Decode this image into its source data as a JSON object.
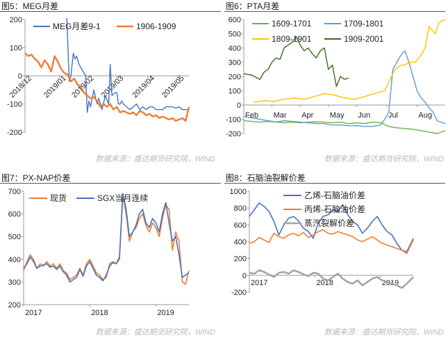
{
  "figures": [
    {
      "id": "p1",
      "title": "图5：MEG月差",
      "source": "数据来源：盛达期货研究院，WIND"
    },
    {
      "id": "p2",
      "title": "图6：PTA月差",
      "source": "数据来源：盛达期货研究院，WIND"
    },
    {
      "id": "p3",
      "title": "图7：PX-NAP价差",
      "source": "数据来源：盛达期货研究院，WIND"
    },
    {
      "id": "p4",
      "title": "图8：石脑油裂解价差",
      "source": "数据来源：盛达期货研究院，WIND"
    }
  ],
  "chart_data": [
    {
      "type": "line",
      "ylim": [
        -200,
        200
      ],
      "yticks": [
        -200,
        -100,
        0,
        100,
        200
      ],
      "xticklabels": [
        "2018/12",
        "2019/01",
        "2019/02",
        "2019/03",
        "2019/04",
        "2019/05"
      ],
      "rotated_x_labels": true,
      "legend": "top",
      "series": [
        {
          "name": "MEG月差9-1",
          "color": "#4472c4",
          "width": 1.4,
          "x": [
            0.255,
            0.27,
            0.28,
            0.285,
            0.295,
            0.305,
            0.315,
            0.33,
            0.35,
            0.36,
            0.37,
            0.38,
            0.39,
            0.4,
            0.42,
            0.44,
            0.45,
            0.47,
            0.49,
            0.51,
            0.52,
            0.53,
            0.55,
            0.56,
            0.57,
            0.58,
            0.59,
            0.6,
            0.62,
            0.64,
            0.66,
            0.68,
            0.7,
            0.72,
            0.74,
            0.76,
            0.78,
            0.8,
            0.82,
            0.84,
            0.86,
            0.88,
            0.9,
            0.92,
            0.94,
            0.96,
            0.98,
            1.0
          ],
          "y": [
            205,
            -20,
            0,
            30,
            80,
            60,
            70,
            40,
            20,
            10,
            0,
            -130,
            -90,
            -110,
            -50,
            -100,
            -80,
            -120,
            -70,
            -100,
            40,
            -70,
            -60,
            -60,
            -100,
            -100,
            -90,
            -100,
            -110,
            -120,
            -110,
            -100,
            -120,
            -110,
            -120,
            -110,
            -110,
            -120,
            -120,
            -120,
            -110,
            -110,
            -110,
            -115,
            -110,
            -120,
            -120,
            -120
          ]
        },
        {
          "name": "1906-1909",
          "color": "#ed7d31",
          "width": 2.4,
          "x": [
            0.0,
            0.02,
            0.04,
            0.06,
            0.08,
            0.1,
            0.12,
            0.14,
            0.16,
            0.18,
            0.2,
            0.22,
            0.24,
            0.26,
            0.28,
            0.3,
            0.32,
            0.34,
            0.36,
            0.38,
            0.4,
            0.42,
            0.44,
            0.46,
            0.48,
            0.5,
            0.52,
            0.54,
            0.56,
            0.58,
            0.6,
            0.62,
            0.64,
            0.66,
            0.68,
            0.7,
            0.72,
            0.74,
            0.76,
            0.78,
            0.8,
            0.82,
            0.84,
            0.86,
            0.88,
            0.9,
            0.92,
            0.94,
            0.96,
            0.98,
            1.0
          ],
          "y": [
            80,
            70,
            75,
            60,
            50,
            30,
            55,
            40,
            15,
            70,
            50,
            25,
            10,
            5,
            -20,
            -10,
            -30,
            -40,
            -60,
            -70,
            -80,
            -75,
            -90,
            -110,
            -100,
            -110,
            -100,
            -120,
            -110,
            -130,
            -125,
            -130,
            -135,
            -130,
            -140,
            -125,
            -130,
            -140,
            -135,
            -145,
            -140,
            -150,
            -145,
            -150,
            -155,
            -150,
            -160,
            -155,
            -150,
            -160,
            -110
          ]
        }
      ]
    },
    {
      "type": "line",
      "ylim": [
        -200,
        600
      ],
      "yticks": [
        -200,
        -100,
        0,
        100,
        200,
        300,
        400,
        500,
        600
      ],
      "xticklabels": [
        "Feb",
        "Mar",
        "Apr",
        "May",
        "Jun",
        "Jul",
        "Aug"
      ],
      "legend": "top",
      "series": [
        {
          "name": "1609-1701",
          "color": "#70ad47",
          "width": 1.4,
          "x": [
            0.0,
            0.04,
            0.08,
            0.12,
            0.16,
            0.2,
            0.24,
            0.28,
            0.32,
            0.36,
            0.4,
            0.44,
            0.48,
            0.52,
            0.56,
            0.6,
            0.64,
            0.68,
            0.72,
            0.76,
            0.8,
            0.84,
            0.88,
            0.92,
            0.96,
            1.0
          ],
          "y": [
            -110,
            -115,
            -120,
            -115,
            -120,
            -125,
            -120,
            -125,
            -120,
            -118,
            -120,
            -125,
            -120,
            -130,
            -125,
            -130,
            -120,
            -125,
            -150,
            -160,
            -165,
            -170,
            -180,
            -190,
            -200,
            -180
          ]
        },
        {
          "name": "1709-1801",
          "color": "#5b9bd5",
          "width": 1.4,
          "x": [
            0.0,
            0.04,
            0.08,
            0.12,
            0.16,
            0.2,
            0.24,
            0.28,
            0.32,
            0.36,
            0.4,
            0.44,
            0.48,
            0.52,
            0.56,
            0.6,
            0.64,
            0.68,
            0.7,
            0.72,
            0.74,
            0.76,
            0.78,
            0.8,
            0.82,
            0.84,
            0.86,
            0.88,
            0.9,
            0.92,
            0.94,
            0.96,
            1.0
          ],
          "y": [
            -80,
            -90,
            -100,
            -110,
            -120,
            -110,
            -115,
            -120,
            -125,
            -130,
            -130,
            -140,
            -140,
            -145,
            -145,
            -150,
            -150,
            -140,
            -100,
            -50,
            250,
            300,
            350,
            380,
            300,
            200,
            100,
            50,
            20,
            -20,
            -50,
            -110,
            -130
          ]
        },
        {
          "name": "1809-1901",
          "color": "#ffc000",
          "width": 1.4,
          "x": [
            0.05,
            0.1,
            0.15,
            0.2,
            0.25,
            0.3,
            0.35,
            0.4,
            0.45,
            0.5,
            0.55,
            0.6,
            0.65,
            0.7,
            0.75,
            0.78,
            0.8,
            0.82,
            0.85,
            0.88,
            0.9,
            0.92,
            0.95,
            0.97,
            1.0
          ],
          "y": [
            20,
            30,
            25,
            40,
            50,
            40,
            60,
            80,
            70,
            50,
            40,
            60,
            80,
            100,
            250,
            280,
            280,
            300,
            300,
            350,
            400,
            550,
            500,
            580,
            600
          ]
        },
        {
          "name": "1909-2001",
          "color": "#3a6a1f",
          "width": 1.4,
          "x": [
            0.0,
            0.04,
            0.08,
            0.1,
            0.12,
            0.14,
            0.16,
            0.18,
            0.2,
            0.22,
            0.24,
            0.26,
            0.28,
            0.3,
            0.32,
            0.34,
            0.36,
            0.38,
            0.4,
            0.42,
            0.44,
            0.46,
            0.48,
            0.5,
            0.52
          ],
          "y": [
            220,
            210,
            180,
            230,
            250,
            300,
            330,
            320,
            400,
            420,
            440,
            480,
            420,
            380,
            400,
            360,
            330,
            380,
            400,
            250,
            280,
            130,
            200,
            180,
            190
          ]
        }
      ]
    },
    {
      "type": "line",
      "ylim": [
        200,
        700
      ],
      "yticks": [
        200,
        300,
        400,
        500,
        600,
        700
      ],
      "xticklabels": [
        "2017",
        "2018",
        "2019"
      ],
      "legend": "top",
      "series": [
        {
          "name": "现货",
          "color": "#ed7d31",
          "width": 1.6,
          "x": [
            0.0,
            0.02,
            0.04,
            0.06,
            0.08,
            0.1,
            0.12,
            0.14,
            0.16,
            0.18,
            0.2,
            0.22,
            0.24,
            0.26,
            0.28,
            0.3,
            0.32,
            0.34,
            0.36,
            0.38,
            0.4,
            0.42,
            0.44,
            0.46,
            0.48,
            0.5,
            0.52,
            0.54,
            0.56,
            0.58,
            0.6,
            0.62,
            0.64,
            0.66,
            0.68,
            0.7,
            0.72,
            0.74,
            0.76,
            0.78,
            0.8,
            0.82,
            0.84,
            0.86,
            0.88,
            0.9,
            0.92,
            0.94,
            0.96,
            0.98,
            1.0
          ],
          "y": [
            350,
            390,
            420,
            400,
            360,
            380,
            370,
            390,
            370,
            380,
            360,
            380,
            350,
            340,
            310,
            320,
            330,
            360,
            330,
            380,
            400,
            370,
            340,
            330,
            310,
            320,
            380,
            390,
            380,
            400,
            680,
            600,
            480,
            520,
            540,
            580,
            600,
            550,
            520,
            560,
            540,
            500,
            580,
            640,
            620,
            440,
            520,
            480,
            300,
            290,
            350
          ]
        },
        {
          "name": "SGX当月连续",
          "color": "#4472c4",
          "width": 1.6,
          "x": [
            0.0,
            0.02,
            0.04,
            0.06,
            0.08,
            0.1,
            0.12,
            0.14,
            0.16,
            0.18,
            0.2,
            0.22,
            0.24,
            0.26,
            0.28,
            0.3,
            0.32,
            0.34,
            0.36,
            0.38,
            0.4,
            0.42,
            0.44,
            0.46,
            0.48,
            0.5,
            0.52,
            0.54,
            0.56,
            0.58,
            0.6,
            0.62,
            0.64,
            0.66,
            0.68,
            0.7,
            0.72,
            0.74,
            0.76,
            0.78,
            0.8,
            0.82,
            0.84,
            0.86,
            0.88,
            0.9,
            0.92,
            0.94,
            0.96,
            0.98,
            1.0
          ],
          "y": [
            360,
            380,
            410,
            390,
            360,
            370,
            375,
            380,
            365,
            370,
            355,
            370,
            345,
            330,
            300,
            310,
            320,
            355,
            325,
            370,
            390,
            360,
            330,
            320,
            305,
            330,
            370,
            385,
            380,
            410,
            690,
            620,
            500,
            520,
            550,
            600,
            620,
            560,
            540,
            580,
            560,
            520,
            600,
            650,
            560,
            480,
            500,
            420,
            320,
            330,
            340
          ]
        }
      ]
    },
    {
      "type": "line",
      "ylim": [
        -200,
        1000
      ],
      "yticks": [
        -200,
        0,
        200,
        400,
        600,
        800,
        1000
      ],
      "xticklabels": [
        "2017",
        "2018",
        "2019"
      ],
      "legend": "top",
      "series": [
        {
          "name": "乙烯-石脑油价差",
          "color": "#4472c4",
          "width": 1.6,
          "x": [
            0.0,
            0.03,
            0.06,
            0.09,
            0.12,
            0.15,
            0.18,
            0.21,
            0.24,
            0.27,
            0.3,
            0.33,
            0.36,
            0.39,
            0.42,
            0.45,
            0.48,
            0.51,
            0.54,
            0.57,
            0.6,
            0.63,
            0.66,
            0.69,
            0.72,
            0.75,
            0.78,
            0.81,
            0.84,
            0.87,
            0.9,
            0.93,
            0.96,
            1.0
          ],
          "y": [
            700,
            780,
            860,
            820,
            760,
            640,
            480,
            600,
            680,
            700,
            650,
            560,
            520,
            440,
            620,
            700,
            720,
            780,
            760,
            840,
            720,
            640,
            600,
            500,
            560,
            640,
            700,
            600,
            520,
            480,
            380,
            300,
            280,
            440
          ]
        },
        {
          "name": "丙烯-石脑油价差",
          "color": "#ed7d31",
          "width": 1.6,
          "x": [
            0.0,
            0.03,
            0.06,
            0.09,
            0.12,
            0.15,
            0.18,
            0.21,
            0.24,
            0.27,
            0.3,
            0.33,
            0.36,
            0.39,
            0.42,
            0.45,
            0.48,
            0.51,
            0.54,
            0.57,
            0.6,
            0.63,
            0.66,
            0.69,
            0.72,
            0.75,
            0.78,
            0.81,
            0.84,
            0.87,
            0.9,
            0.93,
            0.96,
            1.0
          ],
          "y": [
            380,
            400,
            450,
            420,
            390,
            500,
            460,
            440,
            480,
            500,
            470,
            510,
            450,
            480,
            520,
            540,
            500,
            490,
            520,
            500,
            480,
            460,
            420,
            400,
            430,
            460,
            420,
            380,
            360,
            340,
            320,
            300,
            260,
            420
          ]
        },
        {
          "name": "蒸汽裂解价差",
          "color": "#a5a5a5",
          "width": 2.6,
          "x": [
            0.0,
            0.03,
            0.06,
            0.09,
            0.12,
            0.15,
            0.18,
            0.21,
            0.24,
            0.27,
            0.3,
            0.33,
            0.36,
            0.39,
            0.42,
            0.45,
            0.48,
            0.51,
            0.54,
            0.57,
            0.6,
            0.63,
            0.66,
            0.69,
            0.72,
            0.75,
            0.78,
            0.81,
            0.84,
            0.87,
            0.9,
            0.93,
            0.96,
            1.0
          ],
          "y": [
            30,
            20,
            60,
            40,
            10,
            -20,
            30,
            40,
            20,
            60,
            40,
            10,
            -10,
            30,
            20,
            -40,
            -60,
            -20,
            20,
            -40,
            -80,
            -100,
            -60,
            -120,
            -80,
            -40,
            -20,
            -60,
            -80,
            -100,
            -120,
            -150,
            -100,
            -20
          ]
        }
      ]
    }
  ]
}
